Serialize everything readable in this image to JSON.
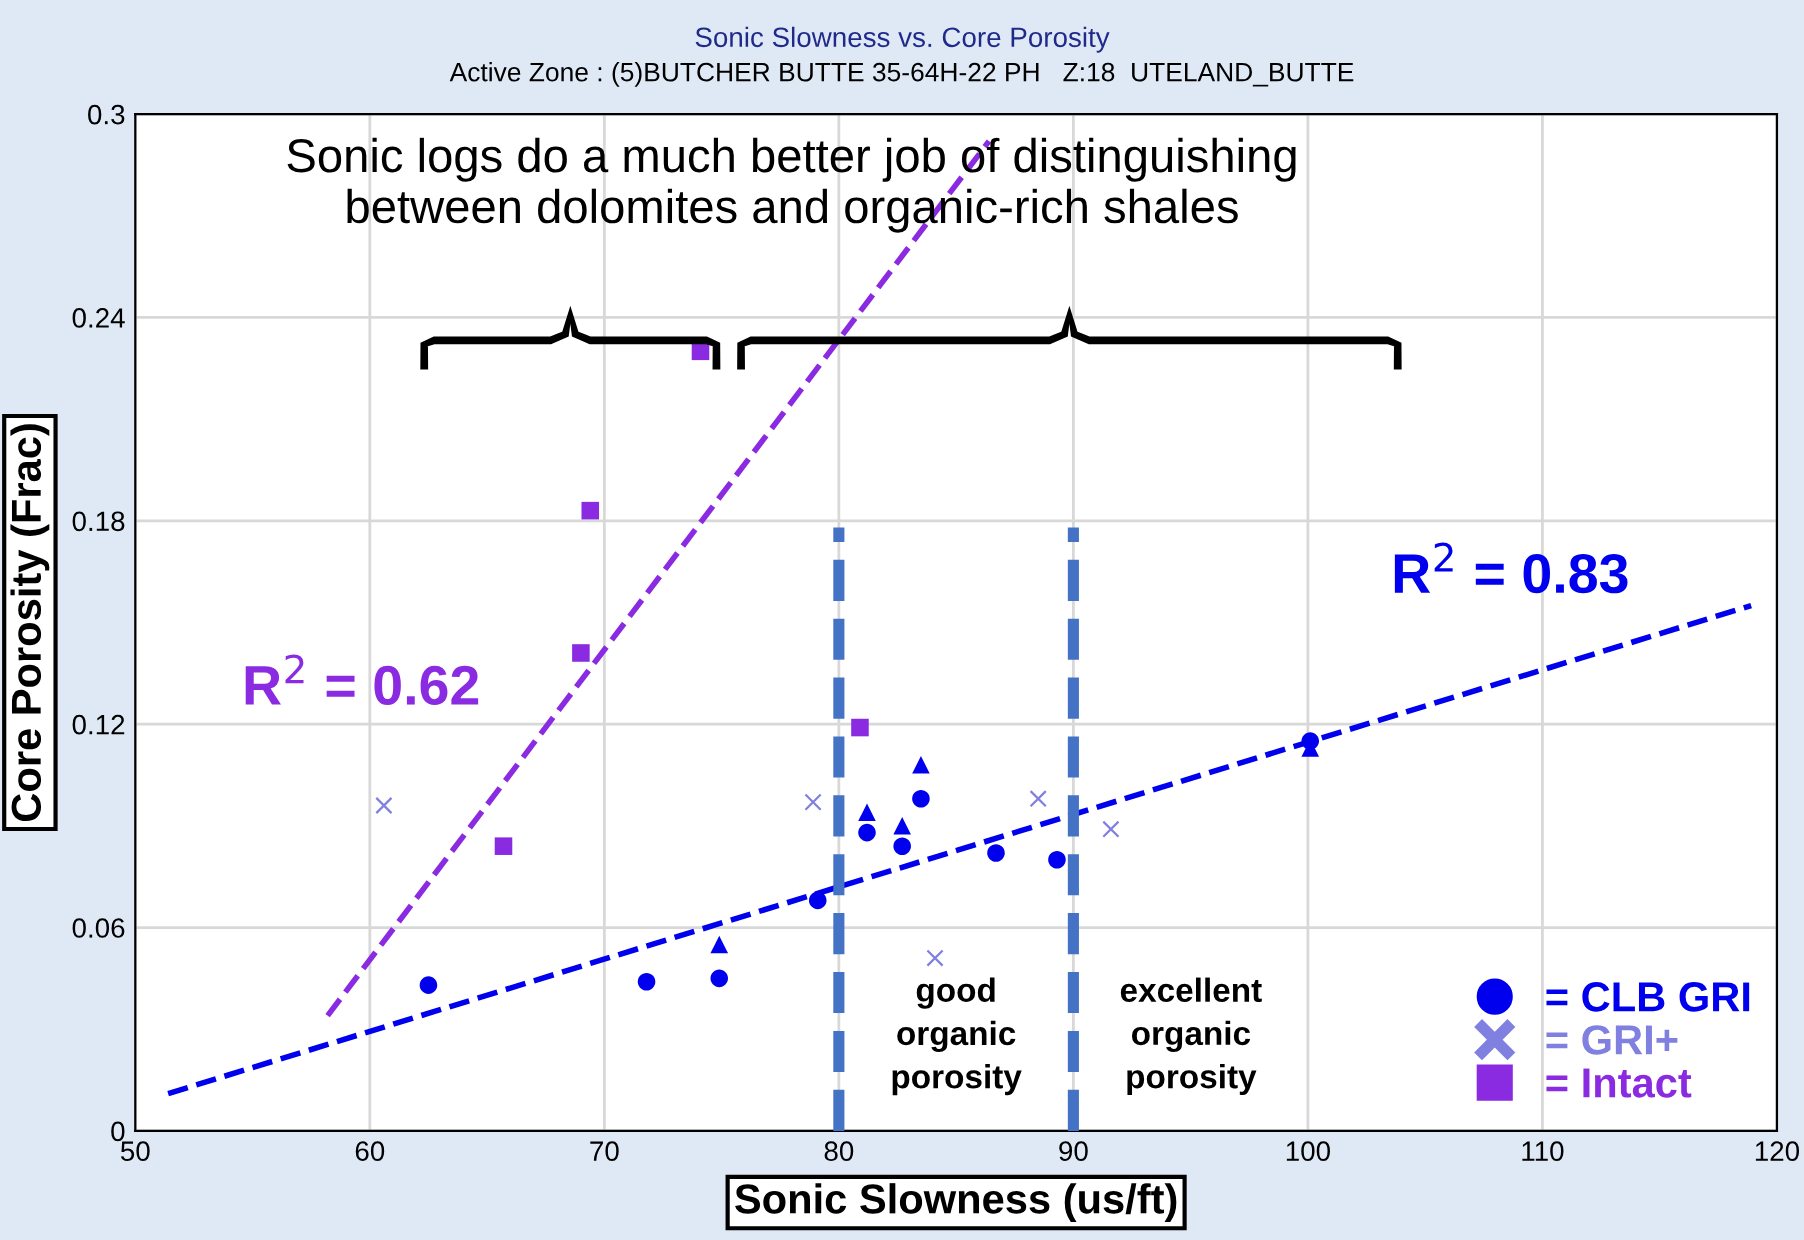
{
  "chart_data": {
    "type": "scatter",
    "title": "Sonic Slowness vs. Core Porosity",
    "subtitle": "Active Zone : (5)BUTCHER BUTTE 35-64H-22 PH   Z:18  UTELAND_BUTTE",
    "xlabel": "Sonic Slowness (us/ft)",
    "ylabel": "Core Porosity (Frac)",
    "xlim": [
      50,
      120
    ],
    "xticks": [
      50,
      60,
      70,
      80,
      90,
      100,
      110,
      120
    ],
    "ylim": [
      0,
      0.3
    ],
    "yticks": [
      0,
      0.06,
      0.12,
      0.18,
      0.24,
      0.3
    ],
    "grid": true,
    "legend": "bottom right",
    "series": [
      {
        "name": "= CLB GRI",
        "marker": "circle",
        "color": "#0000ee",
        "x": [
          62.5,
          71.8,
          74.9,
          79.1,
          81.2,
          82.7,
          83.5,
          86.7,
          89.3,
          100.1
        ],
        "values": [
          0.043,
          0.044,
          0.045,
          0.068,
          0.088,
          0.084,
          0.098,
          0.082,
          0.08,
          0.115
        ]
      },
      {
        "marker": "triangle",
        "color": "#0000ee",
        "x": [
          74.9,
          81.2,
          82.7,
          83.5,
          100.1
        ],
        "values": [
          0.055,
          0.094,
          0.09,
          0.108,
          0.113
        ]
      },
      {
        "name": "= GRI+",
        "marker": "cross",
        "color": "#8080e0",
        "x": [
          60.6,
          78.9,
          84.1,
          88.5,
          91.6
        ],
        "values": [
          0.096,
          0.097,
          0.051,
          0.098,
          0.089
        ]
      },
      {
        "name": "= Intact",
        "marker": "square",
        "color": "#8a2be2",
        "x": [
          74.1,
          69.4,
          69.0,
          65.7,
          80.9
        ],
        "values": [
          0.23,
          0.183,
          0.141,
          0.084,
          0.119
        ]
      },
      {
        "type": "line",
        "line_style": "dashed",
        "color": "#0000ee",
        "x": [
          51.4,
          118.9
        ],
        "values": [
          0.011,
          0.155
        ]
      },
      {
        "type": "line",
        "line_style": "dashed",
        "color": "#8a2be2",
        "x": [
          58.2,
          86.4
        ],
        "values": [
          0.034,
          0.292
        ]
      },
      {
        "type": "line",
        "line_style": "dashed",
        "color": "#4472c4",
        "x": [
          80,
          80
        ],
        "values": [
          0,
          0.178
        ]
      },
      {
        "type": "line",
        "line_style": "dashed",
        "color": "#4472c4",
        "x": [
          90,
          90
        ],
        "values": [
          0,
          0.178
        ]
      }
    ],
    "annotations": [
      "Sonic logs do a much better job of distinguishing\nbetween dolomites and organic-rich shales",
      "R$^{2}$ = 0.62",
      "R$^{2}$ = 0.83",
      "good\norganic\nporosity",
      "excellent\norganic\nporosity"
    ]
  }
}
